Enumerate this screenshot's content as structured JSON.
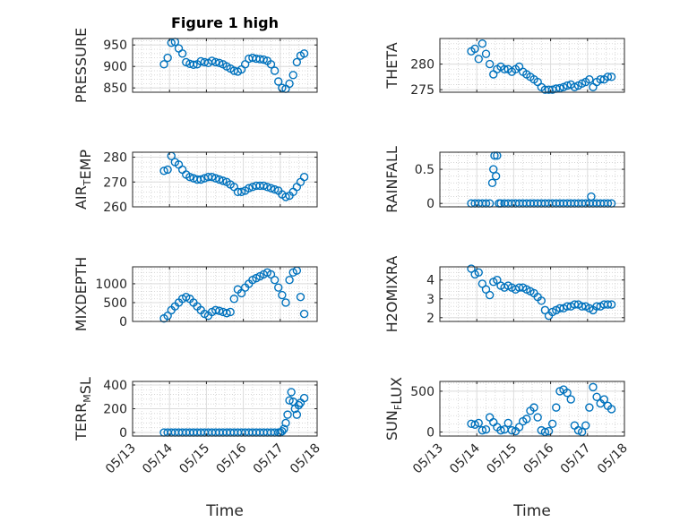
{
  "figure_title": "Figure 1 high",
  "colors": {
    "marker": "#0072bd",
    "axes": "#262626",
    "grid": "#dcdcdc"
  },
  "x_ticks": [
    "05/13",
    "05/14",
    "05/15",
    "05/16",
    "05/17",
    "05/18"
  ],
  "x_label": "Time",
  "chart_data": [
    {
      "id": "pressure",
      "type": "scatter",
      "ylabel": "PRESSURE",
      "title": "Figure 1 high",
      "ylim": [
        840,
        965
      ],
      "yticks": [
        850,
        900,
        950
      ],
      "grid": true,
      "xlim": [
        0,
        5
      ],
      "xtick_labels": [],
      "x": [
        0.85,
        0.95,
        1.05,
        1.15,
        1.25,
        1.35,
        1.45,
        1.55,
        1.65,
        1.75,
        1.85,
        1.95,
        2.05,
        2.15,
        2.25,
        2.35,
        2.45,
        2.55,
        2.65,
        2.75,
        2.85,
        2.95,
        3.05,
        3.15,
        3.25,
        3.35,
        3.45,
        3.55,
        3.65,
        3.75,
        3.85,
        3.95,
        4.05,
        4.15,
        4.25,
        4.35,
        4.45,
        4.55,
        4.65
      ],
      "y": [
        905,
        920,
        955,
        957,
        942,
        930,
        910,
        906,
        904,
        905,
        912,
        910,
        908,
        913,
        910,
        908,
        905,
        900,
        895,
        890,
        888,
        893,
        905,
        918,
        920,
        918,
        917,
        916,
        913,
        905,
        890,
        865,
        850,
        848,
        860,
        880,
        910,
        925,
        930
      ]
    },
    {
      "id": "theta",
      "type": "scatter",
      "ylabel": "THETA",
      "ylim": [
        274.5,
        285
      ],
      "yticks": [
        275,
        280
      ],
      "grid": true,
      "xlim": [
        0,
        5
      ],
      "xtick_labels": [],
      "x": [
        0.85,
        0.95,
        1.05,
        1.15,
        1.25,
        1.35,
        1.45,
        1.55,
        1.65,
        1.75,
        1.85,
        1.95,
        2.05,
        2.15,
        2.25,
        2.35,
        2.45,
        2.55,
        2.65,
        2.75,
        2.85,
        2.95,
        3.05,
        3.15,
        3.25,
        3.35,
        3.45,
        3.55,
        3.65,
        3.75,
        3.85,
        3.95,
        4.05,
        4.15,
        4.25,
        4.35,
        4.45,
        4.55,
        4.65
      ],
      "y": [
        282.5,
        283,
        281,
        284,
        282,
        280,
        278,
        279,
        279.5,
        279,
        279,
        278.5,
        279,
        279.5,
        278.5,
        278,
        277.5,
        277,
        276.5,
        275.5,
        275,
        275,
        275,
        275.2,
        275.3,
        275.5,
        275.8,
        276,
        275.5,
        275.8,
        276.2,
        276.5,
        277,
        275.5,
        276.5,
        277,
        277,
        277.5,
        277.5
      ]
    },
    {
      "id": "air_temp",
      "type": "scatter",
      "ylabel": "AIR_TEMP",
      "ylim": [
        260,
        282
      ],
      "yticks": [
        260,
        270,
        280
      ],
      "grid": true,
      "xlim": [
        0,
        5
      ],
      "xtick_labels": [],
      "x": [
        0.85,
        0.95,
        1.05,
        1.15,
        1.25,
        1.35,
        1.45,
        1.55,
        1.65,
        1.75,
        1.85,
        1.95,
        2.05,
        2.15,
        2.25,
        2.35,
        2.45,
        2.55,
        2.65,
        2.75,
        2.85,
        2.95,
        3.05,
        3.15,
        3.25,
        3.35,
        3.45,
        3.55,
        3.65,
        3.75,
        3.85,
        3.95,
        4.05,
        4.15,
        4.25,
        4.35,
        4.45,
        4.55,
        4.65
      ],
      "y": [
        274.5,
        275,
        280.5,
        278,
        277,
        275,
        273,
        272,
        271.5,
        271,
        271,
        271.5,
        272,
        272,
        271.5,
        271,
        270.5,
        270,
        269,
        268,
        266,
        266,
        266.5,
        267.5,
        268,
        268.5,
        268.5,
        268.5,
        268,
        267.5,
        267,
        266.5,
        265,
        264,
        264.5,
        266,
        268,
        270,
        272
      ]
    },
    {
      "id": "rainfall",
      "type": "scatter",
      "ylabel": "RAINFALL",
      "ylim": [
        -0.05,
        0.75
      ],
      "yticks": [
        0,
        0.5
      ],
      "grid": true,
      "xlim": [
        0,
        5
      ],
      "xtick_labels": [],
      "x": [
        0.85,
        0.95,
        1.05,
        1.15,
        1.25,
        1.35,
        1.42,
        1.45,
        1.48,
        1.52,
        1.55,
        1.6,
        1.65,
        1.75,
        1.85,
        1.95,
        2.05,
        2.15,
        2.25,
        2.35,
        2.45,
        2.55,
        2.65,
        2.75,
        2.85,
        2.95,
        3.05,
        3.15,
        3.25,
        3.35,
        3.45,
        3.55,
        3.65,
        3.75,
        3.85,
        3.95,
        4.05,
        4.1,
        4.15,
        4.25,
        4.35,
        4.45,
        4.55,
        4.65
      ],
      "y": [
        0,
        0,
        0,
        0,
        0,
        0,
        0.3,
        0.5,
        0.7,
        0.4,
        0.7,
        0,
        0,
        0,
        0,
        0,
        0,
        0,
        0,
        0,
        0,
        0,
        0,
        0,
        0,
        0,
        0,
        0,
        0,
        0,
        0,
        0,
        0,
        0,
        0,
        0,
        0,
        0.1,
        0,
        0,
        0,
        0,
        0,
        0
      ]
    },
    {
      "id": "mixdepth",
      "type": "scatter",
      "ylabel": "MIXDEPTH",
      "ylim": [
        0,
        1450
      ],
      "yticks": [
        0,
        500,
        1000
      ],
      "grid": true,
      "xlim": [
        0,
        5
      ],
      "xtick_labels": [],
      "x": [
        0.85,
        0.95,
        1.05,
        1.15,
        1.25,
        1.35,
        1.45,
        1.55,
        1.65,
        1.75,
        1.85,
        1.95,
        2.05,
        2.15,
        2.25,
        2.35,
        2.45,
        2.55,
        2.65,
        2.75,
        2.85,
        2.95,
        3.05,
        3.15,
        3.25,
        3.35,
        3.45,
        3.55,
        3.65,
        3.75,
        3.85,
        3.95,
        4.05,
        4.15,
        4.25,
        4.35,
        4.45,
        4.55,
        4.65
      ],
      "y": [
        80,
        150,
        300,
        400,
        500,
        600,
        650,
        600,
        500,
        400,
        300,
        200,
        150,
        250,
        300,
        280,
        250,
        220,
        250,
        600,
        850,
        750,
        900,
        1000,
        1100,
        1150,
        1200,
        1250,
        1300,
        1250,
        1100,
        900,
        700,
        500,
        1100,
        1300,
        1350,
        650,
        200
      ]
    },
    {
      "id": "h2omixra",
      "type": "scatter",
      "ylabel": "H2OMIXRA",
      "ylim": [
        1.8,
        4.7
      ],
      "yticks": [
        2,
        3,
        4
      ],
      "grid": true,
      "xlim": [
        0,
        5
      ],
      "xtick_labels": [],
      "x": [
        0.85,
        0.95,
        1.05,
        1.15,
        1.25,
        1.35,
        1.45,
        1.55,
        1.65,
        1.75,
        1.85,
        1.95,
        2.05,
        2.15,
        2.25,
        2.35,
        2.45,
        2.55,
        2.65,
        2.75,
        2.85,
        2.95,
        3.05,
        3.15,
        3.25,
        3.35,
        3.45,
        3.55,
        3.65,
        3.75,
        3.85,
        3.95,
        4.05,
        4.15,
        4.25,
        4.35,
        4.45,
        4.55,
        4.65
      ],
      "y": [
        4.6,
        4.3,
        4.4,
        3.8,
        3.5,
        3.2,
        3.9,
        4,
        3.7,
        3.6,
        3.7,
        3.6,
        3.5,
        3.6,
        3.6,
        3.5,
        3.4,
        3.3,
        3.1,
        2.9,
        2.4,
        2.1,
        2.3,
        2.4,
        2.5,
        2.5,
        2.6,
        2.6,
        2.7,
        2.7,
        2.6,
        2.6,
        2.5,
        2.4,
        2.6,
        2.6,
        2.7,
        2.7,
        2.7
      ]
    },
    {
      "id": "terr_msl",
      "type": "scatter",
      "ylabel": "TERR_MSL",
      "ylim": [
        -30,
        430
      ],
      "yticks": [
        0,
        200,
        400
      ],
      "grid": true,
      "xlim": [
        0,
        5
      ],
      "xtick_labels": [
        "05/13",
        "05/14",
        "05/15",
        "05/16",
        "05/17",
        "05/18"
      ],
      "xlabel": "Time",
      "x": [
        0.85,
        0.95,
        1.05,
        1.15,
        1.25,
        1.35,
        1.45,
        1.55,
        1.65,
        1.75,
        1.85,
        1.95,
        2.05,
        2.15,
        2.25,
        2.35,
        2.45,
        2.55,
        2.65,
        2.75,
        2.85,
        2.95,
        3.05,
        3.15,
        3.25,
        3.35,
        3.45,
        3.55,
        3.65,
        3.75,
        3.85,
        3.95,
        4.0,
        4.05,
        4.1,
        4.15,
        4.2,
        4.25,
        4.3,
        4.35,
        4.4,
        4.45,
        4.5,
        4.55,
        4.65
      ],
      "y": [
        0,
        0,
        0,
        0,
        0,
        0,
        0,
        0,
        0,
        0,
        0,
        0,
        0,
        0,
        0,
        0,
        0,
        0,
        0,
        0,
        0,
        0,
        0,
        0,
        0,
        0,
        0,
        0,
        0,
        0,
        0,
        0,
        0,
        10,
        30,
        80,
        150,
        270,
        340,
        260,
        200,
        150,
        230,
        250,
        290
      ]
    },
    {
      "id": "sun_flux",
      "type": "scatter",
      "ylabel": "SUN_FLUX",
      "ylim": [
        -50,
        620
      ],
      "yticks": [
        0,
        500
      ],
      "grid": true,
      "xlim": [
        0,
        5
      ],
      "xtick_labels": [
        "05/13",
        "05/14",
        "05/15",
        "05/16",
        "05/17",
        "05/18"
      ],
      "xlabel": "Time",
      "x": [
        0.85,
        0.95,
        1.05,
        1.15,
        1.25,
        1.35,
        1.45,
        1.55,
        1.65,
        1.75,
        1.85,
        1.95,
        2.05,
        2.15,
        2.25,
        2.35,
        2.45,
        2.55,
        2.65,
        2.75,
        2.85,
        2.95,
        3.05,
        3.15,
        3.25,
        3.35,
        3.45,
        3.55,
        3.65,
        3.75,
        3.85,
        3.95,
        4.05,
        4.15,
        4.25,
        4.35,
        4.45,
        4.55,
        4.65
      ],
      "y": [
        100,
        90,
        110,
        20,
        30,
        180,
        120,
        60,
        20,
        30,
        110,
        20,
        10,
        60,
        130,
        160,
        260,
        300,
        180,
        20,
        0,
        10,
        100,
        300,
        500,
        520,
        480,
        400,
        80,
        20,
        0,
        80,
        300,
        550,
        430,
        350,
        400,
        320,
        280
      ]
    }
  ]
}
